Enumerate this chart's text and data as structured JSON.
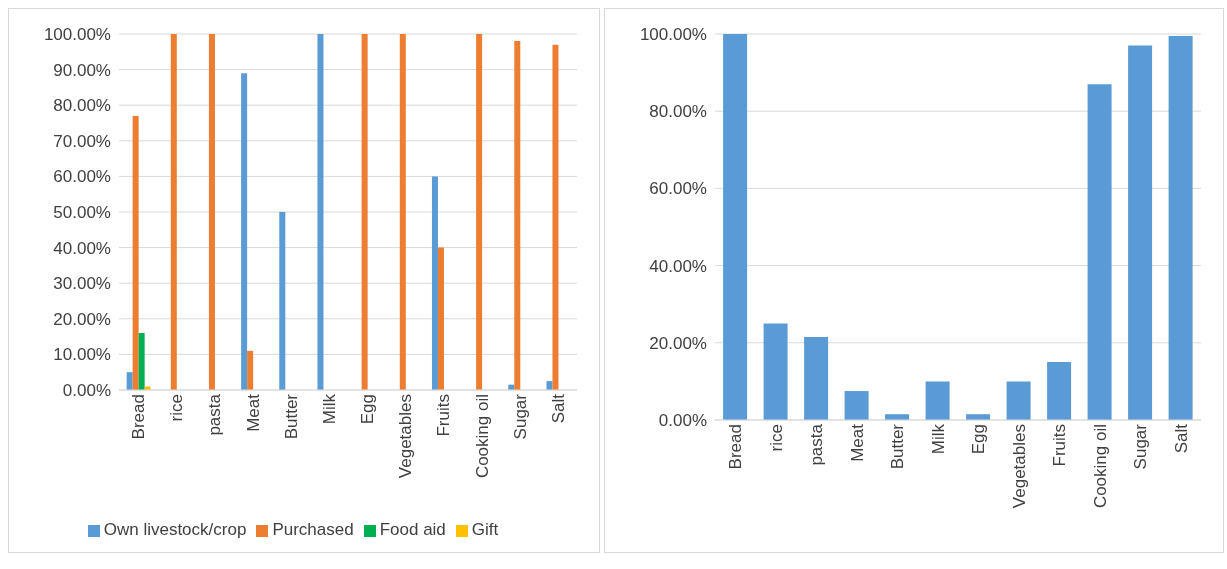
{
  "chart_data": [
    {
      "type": "bar",
      "categories": [
        "Bread",
        "rice",
        "pasta",
        "Meat",
        "Butter",
        "Milk",
        "Egg",
        "Vegetables",
        "Fruits",
        "Cooking oil",
        "Sugar",
        "Salt"
      ],
      "series": [
        {
          "name": "Own livestock/crop",
          "color": "#5b9bd5",
          "values": [
            5,
            0,
            0,
            89,
            50,
            100,
            0,
            0,
            60,
            0,
            1.5,
            2.5
          ]
        },
        {
          "name": "Purchased",
          "color": "#ed7d31",
          "values": [
            77,
            100,
            100,
            11,
            0,
            0,
            100,
            100,
            40,
            100,
            98,
            97
          ]
        },
        {
          "name": "Food aid",
          "color": "#00b050",
          "values": [
            16,
            0,
            0,
            0,
            0,
            0,
            0,
            0,
            0,
            0,
            0,
            0
          ]
        },
        {
          "name": "Gift",
          "color": "#ffc000",
          "values": [
            1,
            0,
            0,
            0,
            0,
            0,
            0,
            0,
            0,
            0,
            0,
            0
          ]
        }
      ],
      "ylim": [
        0,
        100
      ],
      "yticks": [
        {
          "value": 0,
          "label": "0.00%"
        },
        {
          "value": 10,
          "label": "10.00%"
        },
        {
          "value": 20,
          "label": "20.00%"
        },
        {
          "value": 30,
          "label": "30.00%"
        },
        {
          "value": 40,
          "label": "40.00%"
        },
        {
          "value": 50,
          "label": "50.00%"
        },
        {
          "value": 60,
          "label": "60.00%"
        },
        {
          "value": 70,
          "label": "70.00%"
        },
        {
          "value": 80,
          "label": "80.00%"
        },
        {
          "value": 90,
          "label": "90.00%"
        },
        {
          "value": 100,
          "label": "100.00%"
        }
      ],
      "grid": "y",
      "legend": "bottom"
    },
    {
      "type": "bar",
      "categories": [
        "Bread",
        "rice",
        "pasta",
        "Meat",
        "Butter",
        "Milk",
        "Egg",
        "Vegetables",
        "Fruits",
        "Cooking oil",
        "Sugar",
        "Salt"
      ],
      "series": [
        {
          "color": "#5b9bd5",
          "values": [
            100,
            25,
            21.5,
            7.5,
            1.5,
            10,
            1.5,
            10,
            15,
            87,
            97,
            99.5
          ]
        }
      ],
      "ylim": [
        0,
        100
      ],
      "yticks": [
        {
          "value": 0,
          "label": "0.00%"
        },
        {
          "value": 20,
          "label": "20.00%"
        },
        {
          "value": 40,
          "label": "40.00%"
        },
        {
          "value": 60,
          "label": "60.00%"
        },
        {
          "value": 80,
          "label": "80.00%"
        },
        {
          "value": 100,
          "label": "100.00%"
        }
      ],
      "grid": "y"
    }
  ]
}
